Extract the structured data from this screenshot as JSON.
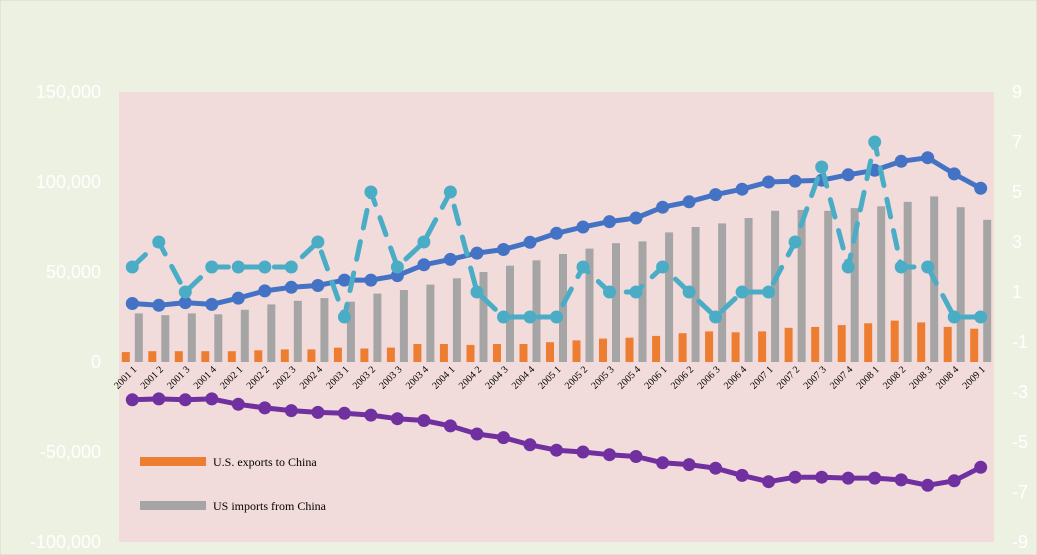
{
  "chart_data": {
    "type": "bar",
    "title": "",
    "xlabel": "",
    "ylabel": "",
    "ylim": [
      -100000,
      150000
    ],
    "y2lim": [
      -9,
      9
    ],
    "left_ticks": [
      "150,000",
      "100,000",
      "50,000",
      "0",
      "-50,000",
      "-100,000"
    ],
    "left_tick_values": [
      150000,
      100000,
      50000,
      0,
      -50000,
      -100000
    ],
    "right_ticks": [
      "9",
      "7",
      "5",
      "3",
      "1",
      "-1",
      "-3",
      "-5",
      "-7",
      "-9"
    ],
    "right_tick_values": [
      9,
      7,
      5,
      3,
      1,
      -1,
      -3,
      -5,
      -7,
      -9
    ],
    "categories": [
      "2001 1",
      "2001 2",
      "2001 3",
      "2001 4",
      "2002 1",
      "2002 2",
      "2002 3",
      "2002 4",
      "2003 1",
      "2003 2",
      "2003 3",
      "2003 4",
      "2004 1",
      "2004 2",
      "2004 3",
      "2004 4",
      "2005 1",
      "2005 2",
      "2005 3",
      "2005 4",
      "2006 1",
      "2006 2",
      "2006 3",
      "2006 4",
      "2007 1",
      "2007 2",
      "2007 3",
      "2007 4",
      "2008 1",
      "2008 2",
      "2008 3",
      "2008 4",
      "2009 1"
    ],
    "bar_series": [
      {
        "name": "U.S. exports to China",
        "color": "#ed7d31",
        "values": [
          5500,
          6000,
          6000,
          6000,
          6000,
          6500,
          7000,
          7000,
          8000,
          7500,
          8000,
          10000,
          10000,
          9500,
          10000,
          10000,
          11000,
          12000,
          13000,
          13500,
          14500,
          16000,
          17000,
          16500,
          17000,
          19000,
          19500,
          20500,
          21500,
          23000,
          22000,
          19500,
          18500
        ]
      },
      {
        "name": "US imports from China",
        "color": "#a5a5a5",
        "values": [
          27000,
          26000,
          27000,
          26500,
          29000,
          32000,
          34000,
          35500,
          33500,
          38000,
          40000,
          43000,
          46500,
          50000,
          53500,
          56500,
          60000,
          63000,
          66000,
          67000,
          72000,
          75000,
          77000,
          80000,
          84000,
          84500,
          84000,
          85500,
          86500,
          89000,
          92000,
          86000,
          79000
        ]
      }
    ],
    "line_series": [
      {
        "color": "#4472c4",
        "axis": "left",
        "values": [
          32500,
          31500,
          33000,
          32000,
          35500,
          39500,
          41500,
          42500,
          45500,
          45500,
          48000,
          54000,
          57000,
          60500,
          62500,
          66500,
          71500,
          75000,
          78000,
          80000,
          86000,
          89000,
          93000,
          96000,
          100000,
          100500,
          101000,
          104000,
          106500,
          111500,
          113500,
          104500,
          96500
        ]
      },
      {
        "color": "#7030a0",
        "axis": "left",
        "values": [
          -21000,
          -20500,
          -21000,
          -20500,
          -23500,
          -25500,
          -27000,
          -28000,
          -28500,
          -29500,
          -31500,
          -32500,
          -35500,
          -40000,
          -42000,
          -46000,
          -49000,
          -50000,
          -51500,
          -52500,
          -56000,
          -57000,
          -59000,
          -63000,
          -66500,
          -64000,
          -64000,
          -64500,
          -64500,
          -65500,
          -68500,
          -66000,
          -58500
        ]
      },
      {
        "color": "#4bacc6",
        "axis": "right",
        "dashed": true,
        "values": [
          2,
          3,
          1,
          2,
          2,
          2,
          2,
          3,
          0,
          5,
          2,
          3,
          5,
          1,
          0,
          0,
          0,
          2,
          1,
          1,
          2,
          1,
          0,
          1,
          1,
          3,
          6,
          2,
          7,
          2,
          2,
          0,
          0
        ]
      }
    ],
    "legend_position": "bottom-left"
  }
}
